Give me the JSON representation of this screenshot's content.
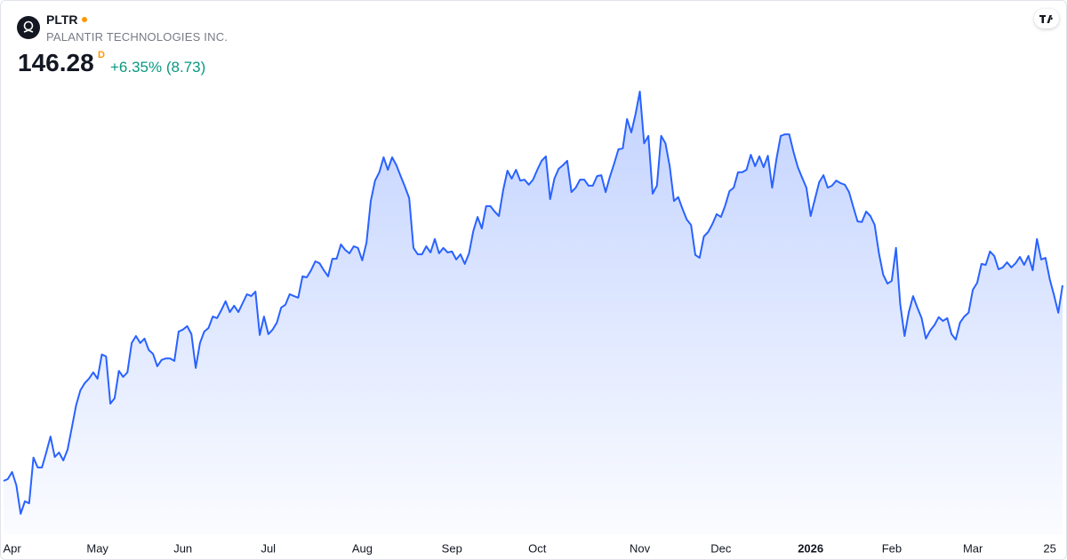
{
  "header": {
    "symbol": "PLTR",
    "company": "PALANTIR TECHNOLOGIES INC.",
    "price": "146.28",
    "interval": "D",
    "change": "+6.35% (8.73)"
  },
  "chart_data": {
    "type": "area",
    "color": "#2962ff",
    "values": [
      85.0,
      85.6,
      87.8,
      83.6,
      74.7,
      78.6,
      78.0,
      92.3,
      89.2,
      89.2,
      93.9,
      98.9,
      92.5,
      93.9,
      91.4,
      94.8,
      101.7,
      108.7,
      113.4,
      115.6,
      117.0,
      119.0,
      117.0,
      124.6,
      124.0,
      109.2,
      110.9,
      119.5,
      117.6,
      119.0,
      128.2,
      130.4,
      128.2,
      129.6,
      126.0,
      124.8,
      120.9,
      122.9,
      123.4,
      123.4,
      122.6,
      131.8,
      132.4,
      133.5,
      131.0,
      120.4,
      128.2,
      131.8,
      132.9,
      136.5,
      136.0,
      138.5,
      141.3,
      137.9,
      139.9,
      137.9,
      140.7,
      143.5,
      142.9,
      144.3,
      130.7,
      136.5,
      131.0,
      132.4,
      134.6,
      139.3,
      140.2,
      143.5,
      142.9,
      142.4,
      149.1,
      148.8,
      151.0,
      153.8,
      153.2,
      151.0,
      149.1,
      154.6,
      154.6,
      159.1,
      157.4,
      156.3,
      158.5,
      158.0,
      154.1,
      159.7,
      172.7,
      179.1,
      181.7,
      186.4,
      182.5,
      186.4,
      183.9,
      180.5,
      177.2,
      173.6,
      158.0,
      156.0,
      156.0,
      158.5,
      156.6,
      160.8,
      156.3,
      158.0,
      156.6,
      156.9,
      154.4,
      156.0,
      153.0,
      156.3,
      163.3,
      167.7,
      164.1,
      171.1,
      171.1,
      169.4,
      168.0,
      176.1,
      182.2,
      179.7,
      182.5,
      179.1,
      179.4,
      177.8,
      179.4,
      182.5,
      185.3,
      186.7,
      173.3,
      179.7,
      182.8,
      183.9,
      185.3,
      175.5,
      176.9,
      179.4,
      179.4,
      177.5,
      177.5,
      180.5,
      180.8,
      175.5,
      180.3,
      184.4,
      188.9,
      189.2,
      198.4,
      194.2,
      200.0,
      207.0,
      190.8,
      193.1,
      175.0,
      177.5,
      193.1,
      190.8,
      183.6,
      172.7,
      173.9,
      170.2,
      166.9,
      165.2,
      155.8,
      154.9,
      161.6,
      163.0,
      165.5,
      168.6,
      167.7,
      171.3,
      175.8,
      176.9,
      181.7,
      181.7,
      182.5,
      187.2,
      183.6,
      186.7,
      183.3,
      186.9,
      176.9,
      185.8,
      193.1,
      193.6,
      193.6,
      188.1,
      183.3,
      180.0,
      176.9,
      168.0,
      173.3,
      178.6,
      180.8,
      176.9,
      177.5,
      179.1,
      178.3,
      177.8,
      175.5,
      170.8,
      166.3,
      166.1,
      169.4,
      168.0,
      165.2,
      156.3,
      149.6,
      146.8,
      147.7,
      158.0,
      140.2,
      130.4,
      137.9,
      142.9,
      139.3,
      136.0,
      129.6,
      132.1,
      133.8,
      136.3,
      135.1,
      136.0,
      131.0,
      129.3,
      134.6,
      136.5,
      137.7,
      144.9,
      147.1,
      153.0,
      152.7,
      156.9,
      155.5,
      151.3,
      151.9,
      153.5,
      151.9,
      153.2,
      155.2,
      152.7,
      155.5,
      151.0,
      160.8,
      154.4,
      154.9,
      148.2,
      143.2,
      137.7,
      146.28
    ],
    "xticks": [
      {
        "value": 2,
        "label": "Apr"
      },
      {
        "value": 22,
        "label": "May"
      },
      {
        "value": 42,
        "label": "Jun"
      },
      {
        "value": 62,
        "label": "Jul"
      },
      {
        "value": 84,
        "label": "Aug"
      },
      {
        "value": 105,
        "label": "Sep"
      },
      {
        "value": 125,
        "label": "Oct"
      },
      {
        "value": 149,
        "label": "Nov"
      },
      {
        "value": 168,
        "label": "Dec"
      },
      {
        "value": 189,
        "label": "2026",
        "bold": true
      },
      {
        "value": 208,
        "label": "Feb"
      },
      {
        "value": 227,
        "label": "Mar"
      },
      {
        "value": 245,
        "label": "25"
      }
    ]
  }
}
